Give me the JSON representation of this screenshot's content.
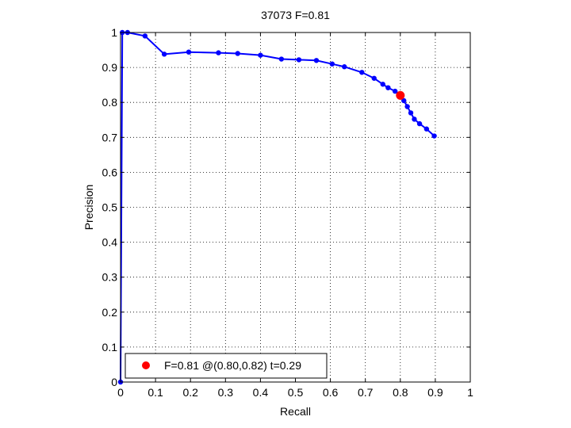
{
  "chart_data": {
    "type": "line",
    "title": "37073 F=0.81",
    "xlabel": "Recall",
    "ylabel": "Precision",
    "xlim": [
      0,
      1
    ],
    "ylim": [
      0,
      1
    ],
    "grid": true,
    "xticks": [
      0,
      0.1,
      0.2,
      0.3,
      0.4,
      0.5,
      0.6,
      0.7,
      0.8,
      0.9,
      1
    ],
    "yticks": [
      0,
      0.1,
      0.2,
      0.3,
      0.4,
      0.5,
      0.6,
      0.7,
      0.8,
      0.9,
      1
    ],
    "xtick_labels": [
      "0",
      "0.1",
      "0.2",
      "0.3",
      "0.4",
      "0.5",
      "0.6",
      "0.7",
      "0.8",
      "0.9",
      "1"
    ],
    "ytick_labels": [
      "0",
      "0.1",
      "0.2",
      "0.3",
      "0.4",
      "0.5",
      "0.6",
      "0.7",
      "0.8",
      "0.9",
      "1"
    ],
    "series": [
      {
        "color": "#0000ff",
        "x": [
          0.0,
          0.005,
          0.02,
          0.07,
          0.125,
          0.195,
          0.28,
          0.335,
          0.4,
          0.46,
          0.51,
          0.56,
          0.605,
          0.64,
          0.69,
          0.725,
          0.75,
          0.765,
          0.785,
          0.8,
          0.81,
          0.82,
          0.83,
          0.84,
          0.855,
          0.875,
          0.897
        ],
        "y": [
          0.0,
          1.0,
          1.0,
          0.99,
          0.938,
          0.944,
          0.942,
          0.94,
          0.935,
          0.924,
          0.922,
          0.92,
          0.91,
          0.902,
          0.886,
          0.869,
          0.852,
          0.842,
          0.832,
          0.822,
          0.805,
          0.788,
          0.77,
          0.752,
          0.739,
          0.724,
          0.704
        ]
      }
    ],
    "highlight_point": {
      "x": 0.8,
      "y": 0.82,
      "color": "#ff0000"
    },
    "legend": {
      "position": "bottom-left",
      "label": "F=0.81 @(0.80,0.82) t=0.29"
    }
  }
}
